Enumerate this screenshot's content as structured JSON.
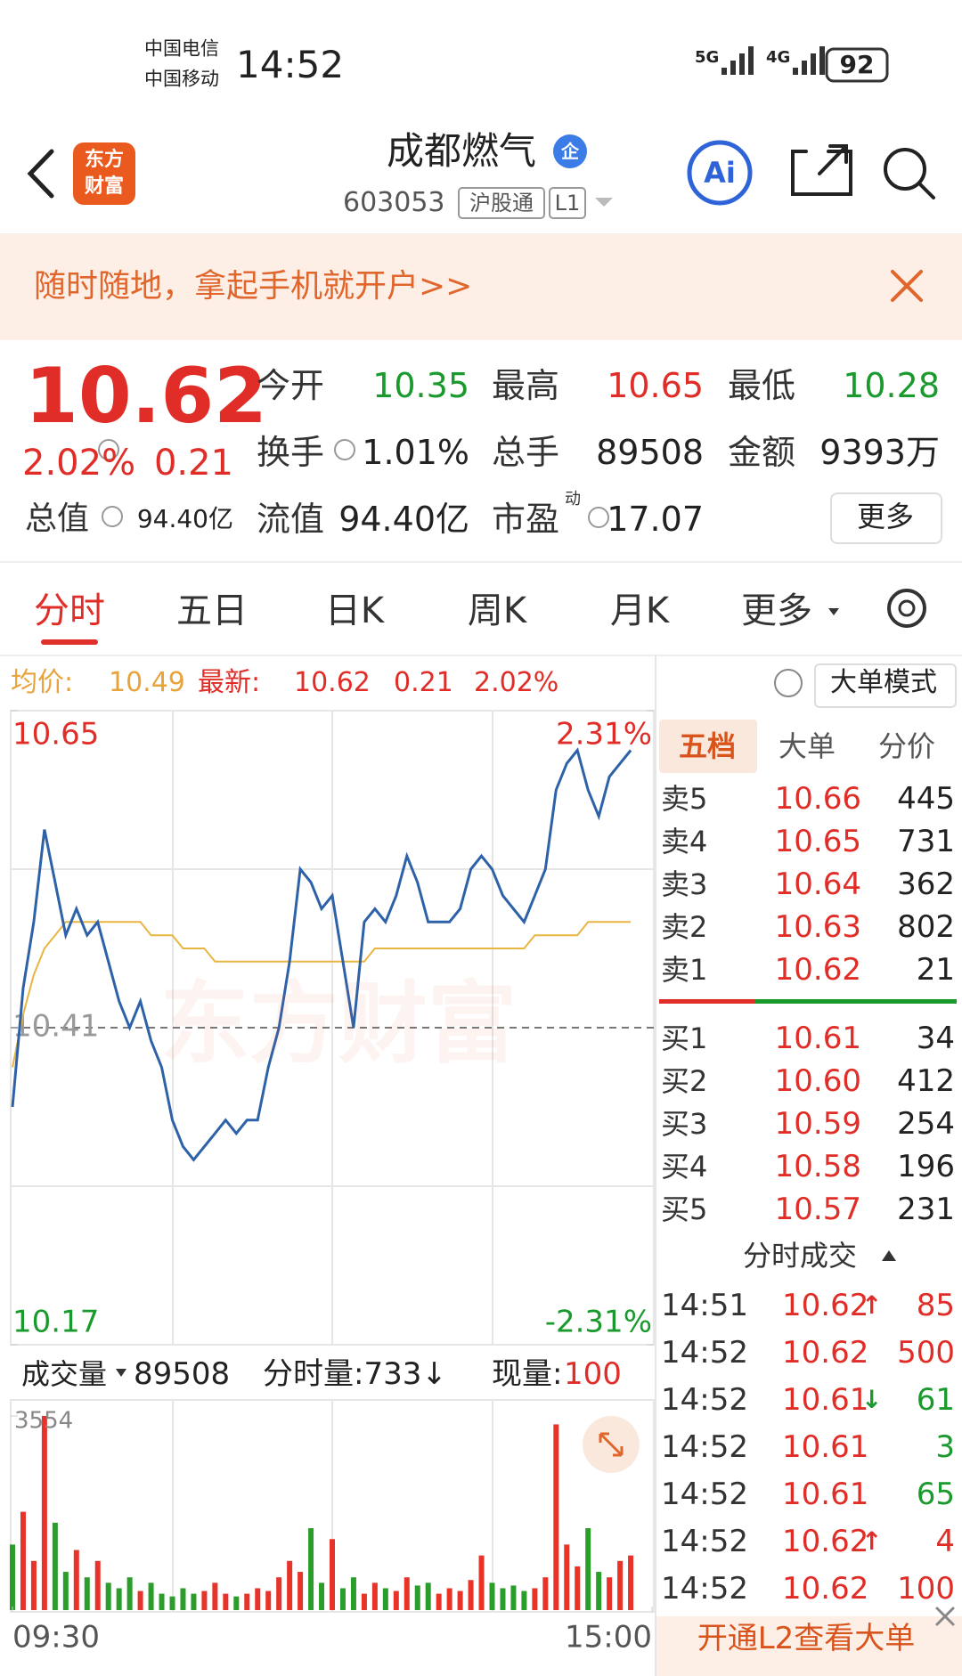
{
  "status_bar": {
    "carriers": [
      "中国电信",
      "中国移动"
    ],
    "time": "14:52",
    "networks": [
      "5G",
      "4G"
    ],
    "battery": "92"
  },
  "header": {
    "logo_lines": [
      "东方",
      "财富"
    ],
    "title": "成都燃气",
    "badge": "企",
    "code": "603053",
    "market": "沪股通",
    "level": "L1",
    "ai": "Ai"
  },
  "banner": {
    "text": "随时随地，拿起手机就开户>>"
  },
  "quote": {
    "price": "10.62",
    "change_pct": "2.02%",
    "change": "0.21",
    "fields": [
      {
        "label": "今开",
        "value": "10.35",
        "color": "#1a9a2c"
      },
      {
        "label": "最高",
        "value": "10.65",
        "color": "#e02d27"
      },
      {
        "label": "最低",
        "value": "10.28",
        "color": "#1a9a2c"
      },
      {
        "label": "换手",
        "value": "1.01%",
        "color": "#222222"
      },
      {
        "label": "总手",
        "value": "89508",
        "color": "#222222"
      },
      {
        "label": "金额",
        "value": "9393万",
        "color": "#222222"
      },
      {
        "label": "总值",
        "value": "94.40亿",
        "color": "#222222"
      },
      {
        "label": "流值",
        "value": "94.40亿",
        "color": "#222222"
      },
      {
        "label": "市盈",
        "sup": "动",
        "value": "17.07",
        "color": "#222222"
      }
    ],
    "more": "更多"
  },
  "tabs": [
    "分时",
    "五日",
    "日K",
    "周K",
    "月K",
    "更多"
  ],
  "info_bar": {
    "avg_label": "均价:",
    "avg": "10.49",
    "latest_label": "最新:",
    "latest": "10.62",
    "change": "0.21",
    "pct": "2.02%",
    "mode": "大单模式"
  },
  "watermark": "东方财富",
  "chart_data": [
    {
      "type": "line",
      "xlim": [
        0,
        240
      ],
      "x": [
        0,
        4,
        8,
        12,
        16,
        20,
        24,
        28,
        32,
        36,
        40,
        44,
        48,
        52,
        56,
        60,
        64,
        68,
        72,
        76,
        80,
        84,
        88,
        92,
        96,
        100,
        104,
        108,
        112,
        116,
        120,
        124,
        128,
        132,
        136,
        140,
        144,
        148,
        152,
        156,
        160,
        164,
        168,
        172,
        176,
        180,
        184,
        188,
        192,
        196,
        200,
        204,
        208,
        212,
        216,
        220,
        224,
        228,
        232
      ],
      "ylim": [
        10.17,
        10.65
      ],
      "yticks": [
        10.65,
        10.41,
        10.17
      ],
      "baseline": 10.41,
      "y2lim": [
        -2.31,
        2.31
      ],
      "y2ticks": [
        {
          "value": 2.31,
          "label": "2.31%"
        },
        {
          "value": -2.31,
          "label": "-2.31%"
        }
      ],
      "up_color": "#e02d27",
      "down_color": "#1a9a2c",
      "flat_color": "#999999",
      "series": [
        {
          "color": "#2e62a8",
          "values": [
            10.35,
            10.44,
            10.49,
            10.56,
            10.52,
            10.48,
            10.5,
            10.48,
            10.49,
            10.46,
            10.43,
            10.41,
            10.43,
            10.4,
            10.38,
            10.34,
            10.32,
            10.31,
            10.32,
            10.33,
            10.34,
            10.33,
            10.34,
            10.34,
            10.38,
            10.41,
            10.46,
            10.53,
            10.52,
            10.5,
            10.51,
            10.46,
            10.41,
            10.49,
            10.5,
            10.49,
            10.51,
            10.54,
            10.52,
            10.49,
            10.49,
            10.49,
            10.5,
            10.53,
            10.54,
            10.53,
            10.51,
            10.5,
            10.49,
            10.51,
            10.53,
            10.59,
            10.61,
            10.62,
            10.59,
            10.57,
            10.6,
            10.61,
            10.62
          ]
        },
        {
          "color": "#e8b640",
          "values": [
            10.38,
            10.42,
            10.45,
            10.47,
            10.48,
            10.49,
            10.49,
            10.49,
            10.49,
            10.49,
            10.49,
            10.49,
            10.49,
            10.48,
            10.48,
            10.48,
            10.47,
            10.47,
            10.47,
            10.46,
            10.46,
            10.46,
            10.46,
            10.46,
            10.46,
            10.46,
            10.46,
            10.46,
            10.46,
            10.46,
            10.46,
            10.46,
            10.46,
            10.46,
            10.47,
            10.47,
            10.47,
            10.47,
            10.47,
            10.47,
            10.47,
            10.47,
            10.47,
            10.47,
            10.47,
            10.47,
            10.47,
            10.47,
            10.47,
            10.48,
            10.48,
            10.48,
            10.48,
            10.48,
            10.49,
            10.49,
            10.49,
            10.49,
            10.49
          ]
        }
      ]
    },
    {
      "type": "bar",
      "xlim": [
        0,
        240
      ],
      "x": [
        0,
        4,
        8,
        12,
        16,
        20,
        24,
        28,
        32,
        36,
        40,
        44,
        48,
        52,
        56,
        60,
        64,
        68,
        72,
        76,
        80,
        84,
        88,
        92,
        96,
        100,
        104,
        108,
        112,
        116,
        120,
        124,
        128,
        132,
        136,
        140,
        144,
        148,
        152,
        156,
        160,
        164,
        168,
        172,
        176,
        180,
        184,
        188,
        192,
        196,
        200,
        204,
        208,
        212,
        216,
        220,
        224,
        228,
        232
      ],
      "xticks": [
        {
          "value": 0,
          "label": "09:30"
        },
        {
          "value": 240,
          "label": "15:00"
        }
      ],
      "ylim": [
        0,
        3554
      ],
      "yticks": [
        3554
      ],
      "up_color": "#e8332b",
      "down_color": "#2a9d2a",
      "values": [
        1200,
        1800,
        900,
        3554,
        1600,
        700,
        1100,
        600,
        900,
        500,
        400,
        600,
        350,
        500,
        300,
        250,
        400,
        300,
        350,
        500,
        300,
        250,
        300,
        400,
        350,
        600,
        900,
        700,
        1500,
        500,
        1300,
        400,
        600,
        300,
        500,
        400,
        350,
        600,
        450,
        500,
        300,
        400,
        350,
        550,
        1000,
        500,
        400,
        450,
        350,
        400,
        600,
        3400,
        1200,
        800,
        1500,
        700,
        600,
        900,
        1000
      ]
    }
  ],
  "volume_header": {
    "label": "成交量",
    "total": "89508",
    "minute": "分时量:733↓",
    "current_label": "现量:",
    "current": "100"
  },
  "order_book": {
    "tabs": [
      "五档",
      "大单",
      "分价"
    ],
    "asks": [
      {
        "label": "卖5",
        "price": "10.66",
        "volume": "445"
      },
      {
        "label": "卖4",
        "price": "10.65",
        "volume": "731"
      },
      {
        "label": "卖3",
        "price": "10.64",
        "volume": "362"
      },
      {
        "label": "卖2",
        "price": "10.63",
        "volume": "802"
      },
      {
        "label": "卖1",
        "price": "10.62",
        "volume": "21"
      }
    ],
    "bids": [
      {
        "label": "买1",
        "price": "10.61",
        "volume": "34"
      },
      {
        "label": "买2",
        "price": "10.60",
        "volume": "412"
      },
      {
        "label": "买3",
        "price": "10.59",
        "volume": "254"
      },
      {
        "label": "买4",
        "price": "10.58",
        "volume": "196"
      },
      {
        "label": "买5",
        "price": "10.57",
        "volume": "231"
      }
    ]
  },
  "trades": {
    "title": "分时成交",
    "rows": [
      {
        "time": "14:51",
        "price": "10.62",
        "dir": "↑",
        "volume": "85",
        "color": "#e02d27"
      },
      {
        "time": "14:52",
        "price": "10.62",
        "volume": "500",
        "color": "#e02d27"
      },
      {
        "time": "14:52",
        "price": "10.61",
        "dir": "↓",
        "volume": "61",
        "color": "#1a9a2c"
      },
      {
        "time": "14:52",
        "price": "10.61",
        "volume": "3",
        "color": "#1a9a2c"
      },
      {
        "time": "14:52",
        "price": "10.61",
        "volume": "65",
        "color": "#1a9a2c"
      },
      {
        "time": "14:52",
        "price": "10.62",
        "dir": "↑",
        "volume": "4",
        "color": "#e02d27"
      },
      {
        "time": "14:52",
        "price": "10.62",
        "volume": "100",
        "color": "#e02d27"
      }
    ]
  },
  "footer": {
    "text": "开通L2查看大单"
  }
}
